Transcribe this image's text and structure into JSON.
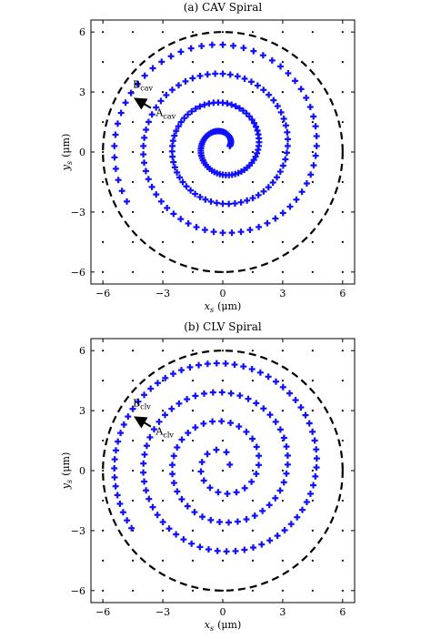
{
  "colors": {
    "spiral": "#1010ff",
    "circle": "#000000",
    "lattice": "#000000",
    "axes": "#000000"
  },
  "chart_data": [
    {
      "type": "scatter",
      "title": "(a) CAV Spiral",
      "xlabel": {
        "var": "x",
        "sub": "s",
        "unit": "(μm)"
      },
      "ylabel": {
        "var": "y",
        "sub": "s",
        "unit": "(μm)"
      },
      "xlim": [
        -6.6,
        6.6
      ],
      "ylim": [
        -6.6,
        6.6
      ],
      "xticks": [
        -6,
        -3,
        0,
        3,
        6
      ],
      "yticks": [
        -6,
        -3,
        0,
        3,
        6
      ],
      "xtick_labels": [
        "−6",
        "−3",
        "0",
        "3",
        "6"
      ],
      "ytick_labels": [
        "−6",
        "−3",
        "0",
        "3",
        "6"
      ],
      "grid": false,
      "lattice": {
        "type": "dots",
        "spacing": 1.5,
        "range": [
          -6,
          6
        ]
      },
      "circle": {
        "radius": 6,
        "style": "dashed"
      },
      "spiral": {
        "marker": "+",
        "mode": "constant-angular-velocity",
        "center": [
          0,
          0.3
        ],
        "turns": 3.6,
        "start_radius": 0.35,
        "pitch": 1.45,
        "angular_step_deg": 6
      },
      "arrow": {
        "from": [
          -3.6,
          2.2
        ],
        "to": [
          -4.35,
          2.65
        ]
      },
      "labels": [
        {
          "main": "B",
          "sub": "cav",
          "at": [
            -4.5,
            3.2
          ]
        },
        {
          "main": "A",
          "sub": "cav",
          "at": [
            -3.35,
            1.8
          ]
        }
      ]
    },
    {
      "type": "scatter",
      "title": "(b) CLV Spiral",
      "xlabel": {
        "var": "x",
        "sub": "s",
        "unit": "(μm)"
      },
      "ylabel": {
        "var": "y",
        "sub": "s",
        "unit": "(μm)"
      },
      "xlim": [
        -6.6,
        6.6
      ],
      "ylim": [
        -6.6,
        6.6
      ],
      "xticks": [
        -6,
        -3,
        0,
        3,
        6
      ],
      "yticks": [
        -6,
        -3,
        0,
        3,
        6
      ],
      "xtick_labels": [
        "−6",
        "−3",
        "0",
        "3",
        "6"
      ],
      "ytick_labels": [
        "−6",
        "−3",
        "0",
        "3",
        "6"
      ],
      "grid": false,
      "lattice": {
        "type": "dots",
        "spacing": 1.5,
        "range": [
          -6,
          6
        ]
      },
      "circle": {
        "radius": 6,
        "style": "dashed"
      },
      "spiral": {
        "marker": "+",
        "mode": "constant-linear-velocity",
        "center": [
          0,
          0.3
        ],
        "turns": 3.6,
        "start_radius": 0.35,
        "pitch": 1.45,
        "arc_step": 0.45
      },
      "arrow": {
        "from": [
          -3.6,
          2.2
        ],
        "to": [
          -4.35,
          2.65
        ]
      },
      "labels": [
        {
          "main": "B",
          "sub": "clv",
          "at": [
            -4.5,
            3.2
          ]
        },
        {
          "main": "A",
          "sub": "clv",
          "at": [
            -3.35,
            1.8
          ]
        }
      ]
    }
  ]
}
